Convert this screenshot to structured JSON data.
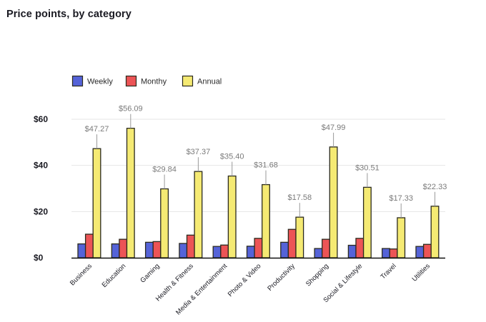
{
  "chart_data": {
    "type": "bar",
    "title": "Price points, by category",
    "xlabel": "",
    "ylabel": "",
    "ylim": [
      0,
      60
    ],
    "yticks": [
      0,
      20,
      40,
      60
    ],
    "ytick_labels": [
      "$0",
      "$20",
      "$40",
      "$60"
    ],
    "grid": true,
    "legend_position": "top-left",
    "categories": [
      "Business",
      "Education",
      "Gaming",
      "Health & Fitness",
      "Media & Entertainment",
      "Photo & Video",
      "Productivity",
      "Shopping",
      "Social & Lifestyle",
      "Travel",
      "Utilities"
    ],
    "series": [
      {
        "name": "Weekly",
        "color": "#5563d8",
        "values": [
          6.0,
          6.0,
          6.7,
          6.2,
          4.9,
          5.0,
          6.7,
          4.0,
          5.4,
          4.0,
          4.9
        ]
      },
      {
        "name": "Monthy",
        "color": "#ec5456",
        "values": [
          10.2,
          8.0,
          7.0,
          9.8,
          5.5,
          8.4,
          12.3,
          8.0,
          8.4,
          3.8,
          5.8
        ]
      },
      {
        "name": "Annual",
        "color": "#f5ea73",
        "values": [
          47.27,
          56.09,
          29.84,
          37.37,
          35.4,
          31.68,
          17.58,
          47.99,
          30.51,
          17.33,
          22.33
        ]
      }
    ],
    "annotations": {
      "series": "Annual",
      "labels": [
        "$47.27",
        "$56.09",
        "$29.84",
        "$37.37",
        "$35.40",
        "$31.68",
        "$17.58",
        "$47.99",
        "$30.51",
        "$17.33",
        "$22.33"
      ]
    }
  },
  "colors": {
    "bar_border": "#2b2a1e",
    "grid": "#e6e6e6",
    "axis": "#111111",
    "label_gray": "#7a7a7a"
  }
}
